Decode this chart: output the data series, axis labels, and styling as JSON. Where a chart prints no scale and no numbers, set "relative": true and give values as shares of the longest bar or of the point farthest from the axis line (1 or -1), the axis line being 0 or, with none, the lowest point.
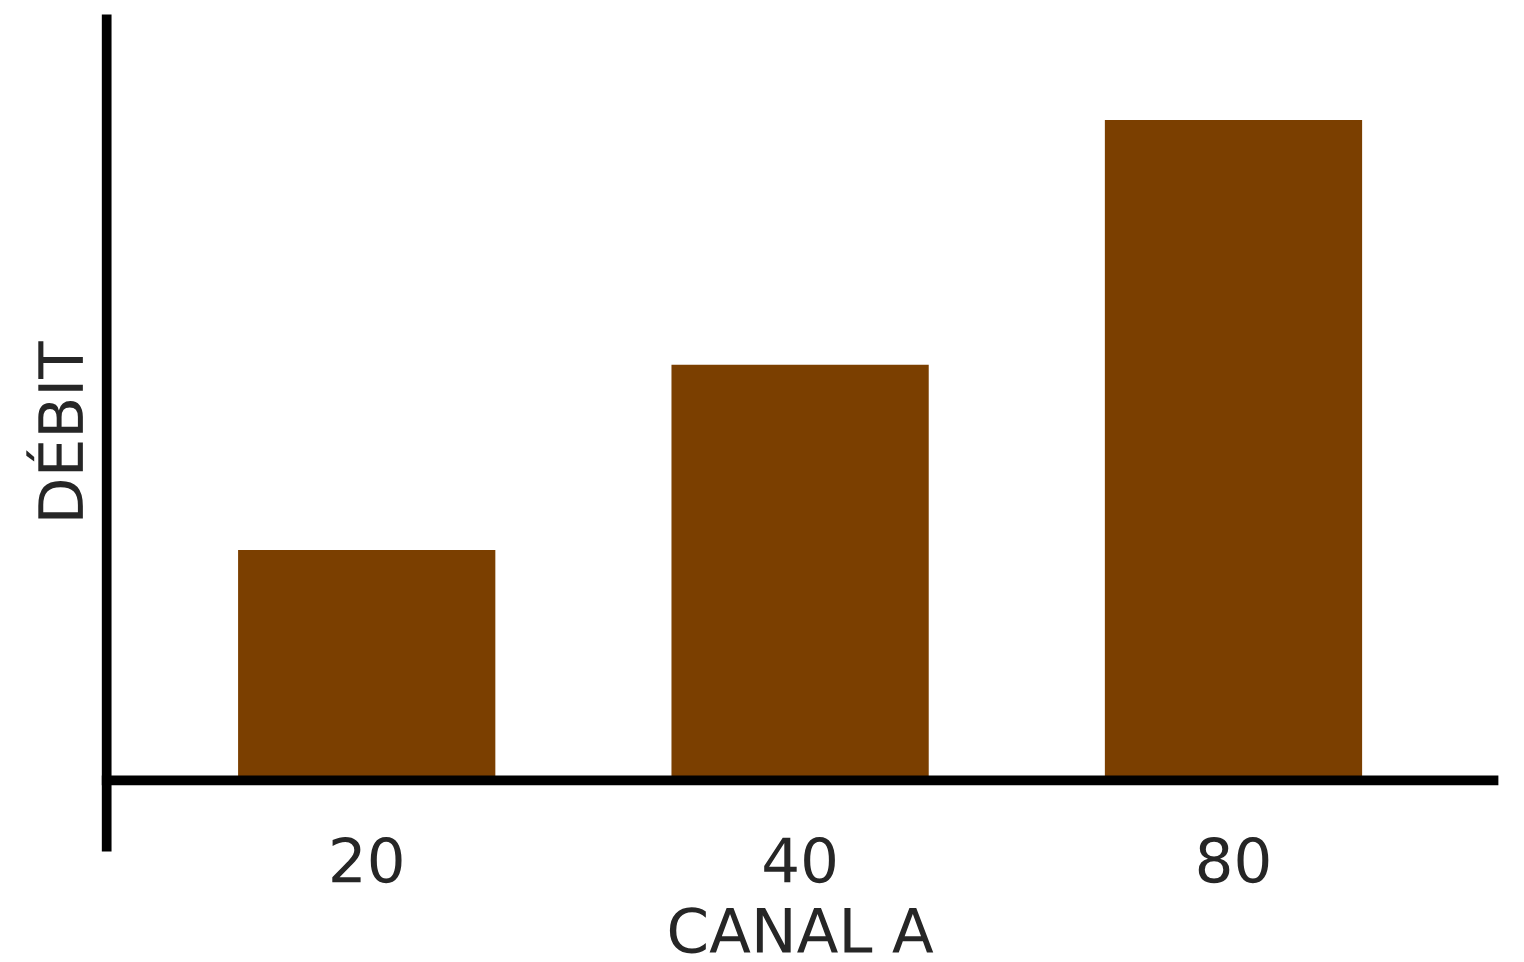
{
  "chart_data": {
    "type": "bar",
    "relative": true,
    "xlabel": "CANAL A",
    "ylabel": "DÉBIT",
    "categories": [
      "20",
      "40",
      "80"
    ],
    "values": [
      0.35,
      0.63,
      1
    ],
    "color": "#7b3f00"
  }
}
